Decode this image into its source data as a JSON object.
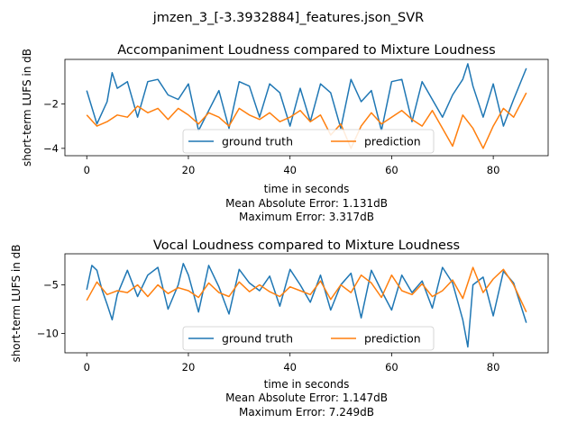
{
  "figure": {
    "suptitle": "jmzen_3_[-3.3932884]_features.json_SVR"
  },
  "chart_data": [
    {
      "type": "line",
      "title": "Accompaniment Loudness compared to Mixture Loudness",
      "xlabel": "time in seconds",
      "caption_lines": [
        "Mean Absolute Error: 1.131dB",
        "Maximum Error: 3.317dB"
      ],
      "ylabel": "short-term LUFS in dB",
      "xlim": [
        -4.3,
        90.8
      ],
      "ylim": [
        -4.33,
        0.0
      ],
      "xticks": [
        0,
        20,
        40,
        60,
        80
      ],
      "yticks": [
        -2,
        -4
      ],
      "grid": false,
      "legend": {
        "placement": "bottom-center",
        "ncol": 2
      },
      "series": [
        {
          "name": "ground truth",
          "color": "#1f77b4",
          "x": [
            0,
            2,
            4,
            5,
            6,
            8,
            10,
            12,
            14,
            16,
            18,
            20,
            22,
            24,
            26,
            28,
            30,
            32,
            34,
            36,
            38,
            40,
            42,
            44,
            46,
            48,
            50,
            52,
            54,
            56,
            58,
            60,
            62,
            64,
            66,
            68,
            70,
            72,
            74,
            75,
            76,
            78,
            80,
            82,
            84,
            86.5
          ],
          "y": [
            -1.4,
            -2.9,
            -1.9,
            -0.6,
            -1.3,
            -1.0,
            -2.6,
            -1.0,
            -0.9,
            -1.6,
            -1.8,
            -1.1,
            -3.2,
            -2.3,
            -1.4,
            -3.1,
            -1.0,
            -1.2,
            -2.6,
            -1.1,
            -1.5,
            -3.0,
            -1.3,
            -2.8,
            -1.1,
            -1.5,
            -3.1,
            -0.9,
            -1.9,
            -1.4,
            -3.2,
            -1.0,
            -0.9,
            -2.8,
            -1.0,
            -1.8,
            -2.6,
            -1.6,
            -0.9,
            -0.2,
            -1.2,
            -2.6,
            -1.1,
            -3.0,
            -1.8,
            -0.4
          ]
        },
        {
          "name": "prediction",
          "color": "#ff7f0e",
          "x": [
            0,
            2,
            4,
            6,
            8,
            10,
            12,
            14,
            16,
            18,
            20,
            22,
            24,
            26,
            28,
            30,
            32,
            34,
            36,
            38,
            40,
            42,
            44,
            46,
            48,
            50,
            52,
            54,
            56,
            58,
            60,
            62,
            64,
            66,
            68,
            70,
            72,
            74,
            76,
            78,
            80,
            82,
            84,
            86.5
          ],
          "y": [
            -2.5,
            -3.0,
            -2.8,
            -2.5,
            -2.6,
            -2.1,
            -2.4,
            -2.2,
            -2.7,
            -2.2,
            -2.5,
            -2.9,
            -2.4,
            -2.6,
            -3.0,
            -2.2,
            -2.5,
            -2.7,
            -2.4,
            -2.8,
            -2.6,
            -2.3,
            -2.8,
            -2.5,
            -3.4,
            -2.9,
            -4.0,
            -3.0,
            -2.4,
            -2.9,
            -2.6,
            -2.3,
            -2.7,
            -3.0,
            -2.3,
            -3.1,
            -3.9,
            -2.5,
            -3.1,
            -4.0,
            -3.0,
            -2.2,
            -2.6,
            -1.5
          ]
        }
      ]
    },
    {
      "type": "line",
      "title": "Vocal Loudness compared to Mixture Loudness",
      "xlabel": "time in seconds",
      "caption_lines": [
        "Mean Absolute Error: 1.147dB",
        "Maximum Error: 7.249dB"
      ],
      "ylabel": "short-term LUFS in dB",
      "xlim": [
        -4.3,
        90.8
      ],
      "ylim": [
        -12.0,
        -1.8
      ],
      "xticks": [
        0,
        20,
        40,
        60,
        80
      ],
      "yticks": [
        -5,
        -10
      ],
      "grid": false,
      "legend": {
        "placement": "bottom-center",
        "ncol": 2
      },
      "series": [
        {
          "name": "ground truth",
          "color": "#1f77b4",
          "x": [
            0,
            1,
            2,
            3,
            4,
            5,
            6,
            8,
            10,
            12,
            14,
            16,
            18,
            19,
            20,
            22,
            24,
            26,
            28,
            30,
            32,
            34,
            36,
            38,
            40,
            42,
            44,
            46,
            48,
            50,
            52,
            54,
            56,
            58,
            60,
            62,
            64,
            66,
            68,
            70,
            72,
            74,
            75,
            76,
            78,
            80,
            82,
            84,
            86.5
          ],
          "y": [
            -5.5,
            -3.0,
            -3.5,
            -5.5,
            -7.0,
            -8.6,
            -6.0,
            -3.5,
            -6.2,
            -4.0,
            -3.2,
            -7.5,
            -5.0,
            -2.8,
            -4.0,
            -7.8,
            -3.0,
            -5.2,
            -8.0,
            -3.4,
            -4.8,
            -5.6,
            -4.1,
            -7.2,
            -3.4,
            -5.0,
            -6.8,
            -4.0,
            -7.6,
            -5.0,
            -3.8,
            -8.4,
            -3.5,
            -5.6,
            -7.6,
            -4.0,
            -5.8,
            -4.6,
            -7.4,
            -3.2,
            -4.8,
            -8.6,
            -11.4,
            -5.0,
            -4.2,
            -8.2,
            -3.6,
            -4.8,
            -8.9
          ]
        },
        {
          "name": "prediction",
          "color": "#ff7f0e",
          "x": [
            0,
            2,
            4,
            6,
            8,
            10,
            12,
            14,
            16,
            18,
            20,
            22,
            24,
            26,
            28,
            30,
            32,
            34,
            36,
            38,
            40,
            42,
            44,
            46,
            48,
            50,
            52,
            54,
            56,
            58,
            60,
            62,
            64,
            66,
            68,
            70,
            72,
            74,
            76,
            78,
            80,
            82,
            84,
            86.5
          ],
          "y": [
            -6.6,
            -4.7,
            -6.0,
            -5.6,
            -5.8,
            -5.0,
            -6.2,
            -5.0,
            -5.9,
            -5.3,
            -5.6,
            -6.3,
            -4.8,
            -5.8,
            -6.2,
            -4.7,
            -5.7,
            -5.0,
            -5.7,
            -6.2,
            -5.2,
            -5.6,
            -6.0,
            -4.6,
            -6.5,
            -5.0,
            -5.8,
            -4.0,
            -4.8,
            -6.3,
            -4.0,
            -5.6,
            -6.0,
            -4.9,
            -6.2,
            -5.6,
            -4.5,
            -6.4,
            -3.2,
            -5.8,
            -4.4,
            -3.4,
            -5.0,
            -7.8
          ]
        }
      ]
    }
  ]
}
